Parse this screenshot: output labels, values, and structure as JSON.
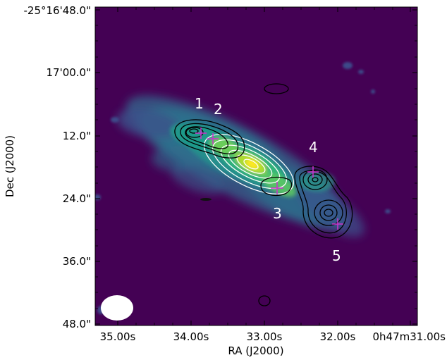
{
  "axes": {
    "xlabel": "RA (J2000)",
    "ylabel": "Dec (J2000)",
    "x_ticks": [
      "35.00s",
      "34.00s",
      "33.00s",
      "32.00s",
      "0h47m31.00s"
    ],
    "y_ticks": [
      "-25°16'48.0\"",
      "17'00.0\"",
      "12.0\"",
      "24.0\"",
      "36.0\"",
      "48.0\""
    ]
  },
  "sources": [
    {
      "label": "1"
    },
    {
      "label": "2"
    },
    {
      "label": "3"
    },
    {
      "label": "4"
    },
    {
      "label": "5"
    }
  ],
  "colors": {
    "background": "#440154",
    "black_contours": "#000000",
    "white_contours": "#ffffff",
    "markers": "#cc33cc",
    "beam": "#ffffff"
  }
}
